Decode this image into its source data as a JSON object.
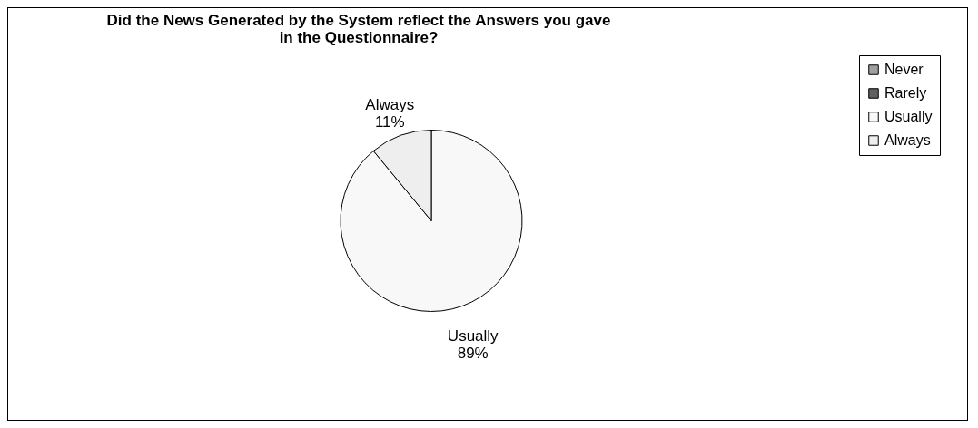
{
  "chart_data": {
    "type": "pie",
    "title": "Did the News Generated by the System reflect the Answers you gave\nin the Questionnaire?",
    "categories": [
      "Never",
      "Rarely",
      "Usually",
      "Always"
    ],
    "values": [
      0,
      0,
      89,
      11
    ],
    "colors": [
      "#a0a0a0",
      "#606060",
      "#f8f8f8",
      "#eeeeee"
    ],
    "value_labels": [
      null,
      null,
      "Usually\n89%",
      "Always\n11%"
    ],
    "legend": "right"
  }
}
